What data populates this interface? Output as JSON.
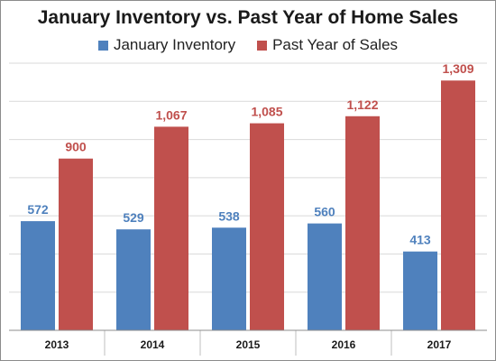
{
  "chart_data": {
    "type": "bar",
    "title": "January Inventory vs. Past Year of Home Sales",
    "categories": [
      "2013",
      "2014",
      "2015",
      "2016",
      "2017"
    ],
    "series": [
      {
        "name": "January Inventory",
        "values": [
          572,
          529,
          538,
          560,
          413
        ],
        "color": "#4f81bd",
        "label_color": "#4f81bd"
      },
      {
        "name": "Past Year of Sales",
        "values": [
          900,
          1067,
          1085,
          1122,
          1309
        ],
        "color": "#c0504d",
        "label_color": "#c0504d"
      }
    ],
    "value_labels": [
      [
        "572",
        "529",
        "538",
        "560",
        "413"
      ],
      [
        "900",
        "1,067",
        "1,085",
        "1,122",
        "1,309"
      ]
    ],
    "ylim": [
      0,
      1400
    ],
    "grid": true,
    "legend": "top"
  }
}
